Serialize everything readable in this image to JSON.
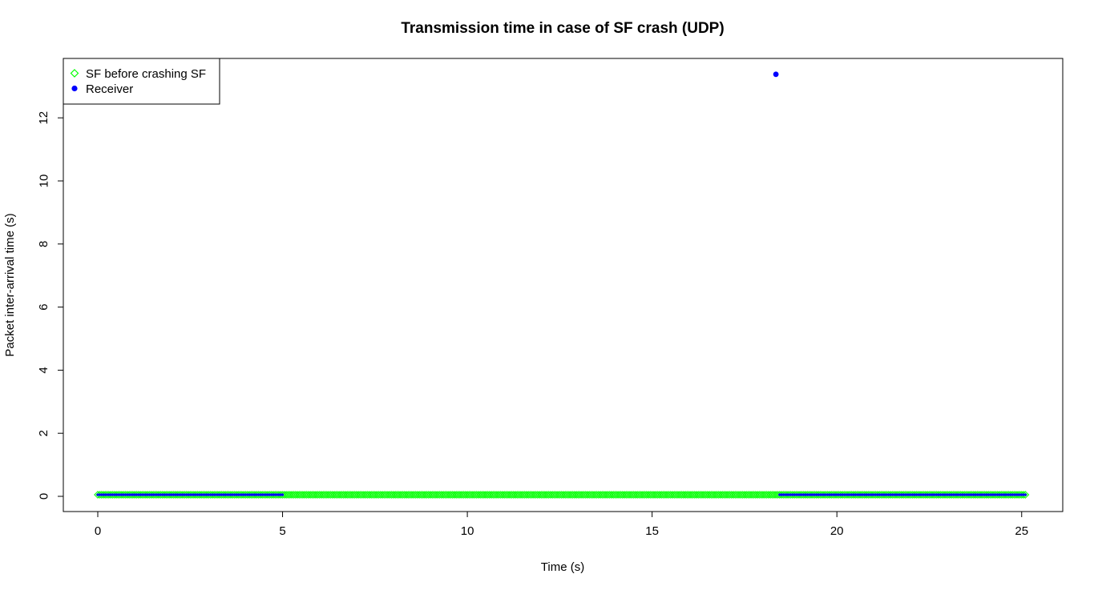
{
  "chart_data": {
    "type": "scatter",
    "title": "Transmission time in case of SF crash (UDP)",
    "xlabel": "Time (s)",
    "ylabel": "Packet inter-arrival time (s)",
    "xlim": [
      0,
      25.1
    ],
    "ylim": [
      0,
      13.4
    ],
    "x_ticks": [
      0,
      5,
      10,
      15,
      20,
      25
    ],
    "y_ticks": [
      0,
      2,
      4,
      6,
      8,
      10,
      12
    ],
    "x_tick_labels": [
      "0",
      "5",
      "10",
      "15",
      "20",
      "25"
    ],
    "y_tick_labels": [
      "0",
      "2",
      "4",
      "6",
      "8",
      "10",
      "12"
    ],
    "grid": false,
    "legend_position": "top-left",
    "legend": [
      {
        "label": "SF before crashing SF",
        "marker": "open-diamond",
        "color": "#00ff00"
      },
      {
        "label": "Receiver",
        "marker": "filled-circle",
        "color": "#0000ff"
      }
    ],
    "series": [
      {
        "name": "SF before crashing SF",
        "marker": "open-diamond",
        "color": "#00ff00",
        "segments": [
          {
            "x_start": 0.0,
            "x_end": 25.08,
            "step": 0.05,
            "y": 0.05
          }
        ]
      },
      {
        "name": "Receiver",
        "marker": "filled-circle",
        "color": "#0000ff",
        "segments": [
          {
            "x_start": 0.0,
            "x_end": 5.0,
            "step": 0.05,
            "y": 0.05
          },
          {
            "x_start": 18.45,
            "x_end": 25.08,
            "step": 0.05,
            "y": 0.05
          }
        ],
        "points": [
          {
            "x": 18.35,
            "y": 13.38
          }
        ]
      }
    ]
  }
}
